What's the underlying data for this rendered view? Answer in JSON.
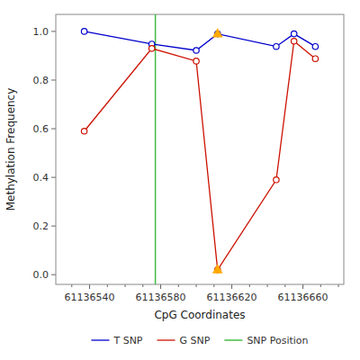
{
  "chart_data": {
    "type": "line",
    "xlabel": "CpG Coordinates",
    "ylabel": "Methylation Frequency",
    "x": [
      61136537,
      61136575,
      61136600,
      61136612,
      61136645,
      61136655,
      61136667
    ],
    "series": [
      {
        "name": "T SNP",
        "color": "#0000cc",
        "marker": "circle",
        "line_style": "solid",
        "values": [
          1.0,
          0.948,
          0.922,
          0.99,
          0.938,
          0.99,
          0.938
        ]
      },
      {
        "name": "G SNP",
        "color": "#cc1100",
        "marker": "circle",
        "line_style": "solid",
        "values": [
          0.59,
          0.93,
          0.878,
          0.02,
          0.39,
          0.96,
          0.888
        ]
      }
    ],
    "reference_lines": [
      {
        "name": "SNP Position",
        "color": "#44bb44",
        "x": 61136577
      }
    ],
    "highlights": [
      {
        "x": 61136612,
        "y": 0.99,
        "color": "#ffaa00",
        "marker": "triangle"
      },
      {
        "x": 61136612,
        "y": 0.02,
        "color": "#ffaa00",
        "marker": "triangle"
      }
    ],
    "xlim": [
      61136521,
      61136683
    ],
    "ylim": [
      -0.04,
      1.07
    ],
    "xticks": [
      61136540,
      61136580,
      61136620,
      61136660
    ],
    "minor_xticks": [
      61136530,
      61136540,
      61136550,
      61136560,
      61136570,
      61136580,
      61136590,
      61136600,
      61136610,
      61136620,
      61136630,
      61136640,
      61136650,
      61136660,
      61136670,
      61136680
    ],
    "yticks": [
      {
        "value": 0.0,
        "label": "0.0"
      },
      0.2,
      0.4,
      0.6,
      0.8,
      {
        "value": 1.0,
        "label": "1.0"
      }
    ],
    "grid": false,
    "legend": "bottom"
  }
}
